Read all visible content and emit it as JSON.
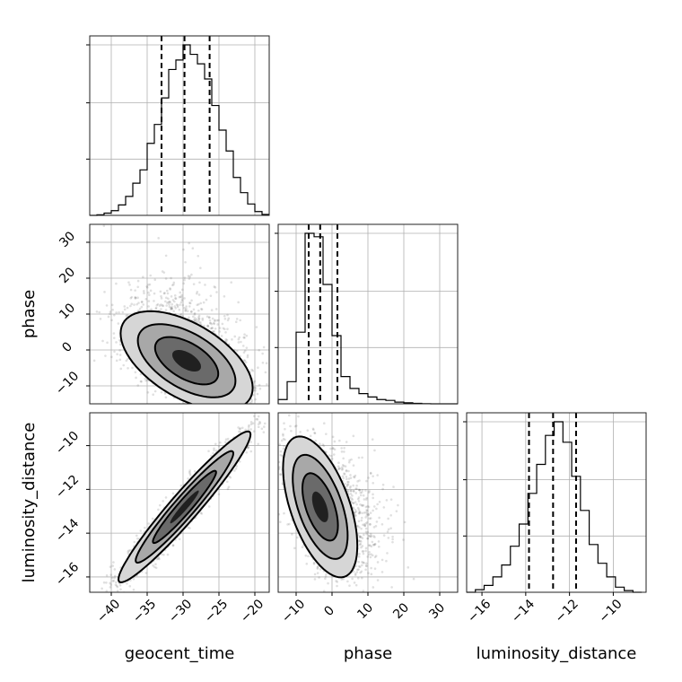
{
  "chart_data": {
    "type": "corner",
    "parameters": [
      "geocent_time",
      "phase",
      "luminosity_distance"
    ],
    "axes": {
      "geocent_time": {
        "range": [
          -43,
          -18
        ],
        "ticks": [
          -40,
          -35,
          -30,
          -25,
          -20
        ],
        "tick_labels": [
          "−40",
          "−35",
          "−30",
          "−25",
          "−20"
        ]
      },
      "phase": {
        "range": [
          -15,
          35
        ],
        "ticks": [
          -10,
          0,
          10,
          20,
          30
        ],
        "tick_labels": [
          "−10",
          "0",
          "10",
          "20",
          "30"
        ]
      },
      "luminosity_distance": {
        "range": [
          -16.7,
          -8.5
        ],
        "ticks": [
          -16,
          -14,
          -12,
          -10
        ],
        "tick_labels": [
          "−16",
          "−14",
          "−12",
          "−10"
        ]
      }
    },
    "grid": true,
    "histograms": {
      "geocent_time": {
        "bin_edges": [
          -43,
          -42,
          -41,
          -40,
          -39,
          -38,
          -37,
          -36,
          -35,
          -34,
          -33,
          -32,
          -31,
          -30,
          -29,
          -28,
          -27,
          -26,
          -25,
          -24,
          -23,
          -22,
          -21,
          -20,
          -19,
          -18
        ],
        "counts": [
          0,
          0.3,
          1.2,
          2.5,
          5.5,
          10,
          17,
          24,
          38,
          48,
          62,
          77,
          82,
          90,
          85,
          80,
          72,
          58,
          45,
          34,
          20,
          12,
          6,
          2,
          0.5
        ],
        "quantiles": [
          -33,
          -29.8,
          -26.3
        ]
      },
      "phase": {
        "bin_edges": [
          -15,
          -12.5,
          -10,
          -7.5,
          -5,
          -2.5,
          0,
          2.5,
          5,
          7.5,
          10,
          12.5,
          15,
          17.5,
          20,
          22.5,
          25,
          27.5,
          30,
          32.5,
          35
        ],
        "counts": [
          2.5,
          13,
          42,
          100,
          98,
          70,
          40,
          16,
          9,
          6,
          4,
          2.5,
          2,
          1,
          0.6,
          0.3,
          0.1,
          0,
          0,
          0
        ],
        "quantiles": [
          -6.5,
          -3.3,
          1.5
        ]
      },
      "luminosity_distance": {
        "bin_edges": [
          -16.7,
          -16.3,
          -15.9,
          -15.5,
          -15.1,
          -14.7,
          -14.3,
          -13.9,
          -13.5,
          -13.1,
          -12.7,
          -12.3,
          -11.9,
          -11.5,
          -11.1,
          -10.7,
          -10.3,
          -9.9,
          -9.5,
          -9.1,
          -8.7
        ],
        "counts": [
          0,
          1.5,
          4,
          9,
          16,
          27,
          40,
          58,
          75,
          92,
          100,
          88,
          68,
          48,
          28,
          17,
          9,
          3,
          1,
          0
        ],
        "quantiles": [
          -13.85,
          -12.75,
          -11.7
        ]
      }
    },
    "scatter_2d": [
      {
        "x": "geocent_time",
        "y": "phase",
        "mean": [
          -29.5,
          -3
        ],
        "sd": [
          4,
          6
        ],
        "correlation": -0.55,
        "levels": [
          0.5,
          1.1,
          1.7,
          2.3
        ],
        "samples": 3000
      },
      {
        "x": "geocent_time",
        "y": "luminosity_distance",
        "mean": [
          -29.8,
          -12.8
        ],
        "sd": [
          4,
          1.5
        ],
        "correlation": 0.96,
        "levels": [
          0.5,
          1.1,
          1.7,
          2.3
        ],
        "samples": 3000
      },
      {
        "x": "phase",
        "y": "luminosity_distance",
        "mean": [
          -3.3,
          -12.8
        ],
        "sd": [
          4.5,
          1.4
        ],
        "correlation": -0.55,
        "levels": [
          0.5,
          1.1,
          1.7,
          2.3
        ],
        "samples": 3000
      }
    ],
    "colors": {
      "line": "#000000",
      "scatter": "#555555",
      "grid": "#b0b0b0"
    }
  }
}
